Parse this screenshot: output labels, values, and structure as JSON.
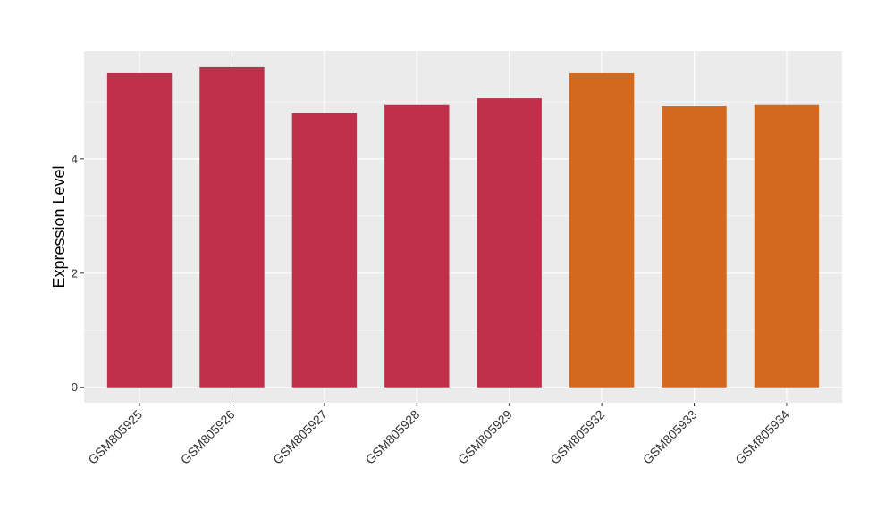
{
  "chart_data": {
    "type": "bar",
    "y_label": "Expression Level",
    "categories": [
      "GSM805925",
      "GSM805926",
      "GSM805927",
      "GSM805928",
      "GSM805929",
      "GSM805932",
      "GSM805933",
      "GSM805934"
    ],
    "values": [
      5.5,
      5.61,
      4.8,
      4.94,
      5.06,
      5.5,
      4.92,
      4.94
    ],
    "colors": [
      "#c1304a",
      "#c1304a",
      "#c1304a",
      "#c1304a",
      "#c1304a",
      "#d2691e",
      "#d2691e",
      "#d2691e"
    ],
    "ylim": [
      -0.27,
      5.89
    ],
    "yticks": [
      0,
      2,
      4
    ],
    "minor_yticks": [
      1,
      3,
      5
    ],
    "grid": true
  }
}
